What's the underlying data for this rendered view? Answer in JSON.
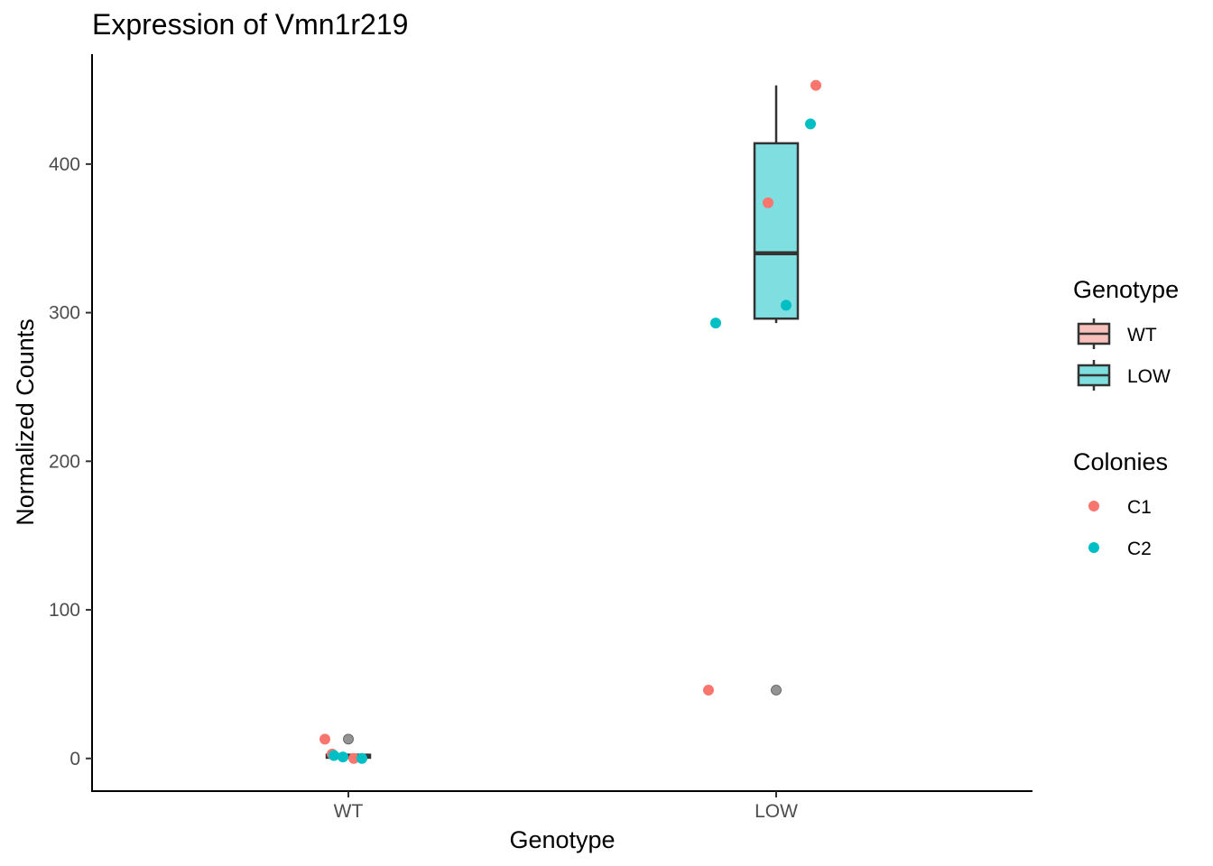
{
  "chart_data": {
    "type": "box",
    "title": "Expression of Vmn1r219",
    "xlabel": "Genotype",
    "ylabel": "Normalized Counts",
    "categories": [
      "WT",
      "LOW"
    ],
    "ylim": [
      -22,
      474
    ],
    "yticks": [
      0,
      100,
      200,
      300,
      400
    ],
    "grid": false,
    "boxes": [
      {
        "category": "WT",
        "fill": "#f8c0bb",
        "min": 0,
        "q1": 0.5,
        "median": 1.5,
        "q3": 2.5,
        "max": 3
      },
      {
        "category": "LOW",
        "fill": "#7fdfe0",
        "min": 293,
        "q1": 296,
        "median": 340,
        "q3": 414,
        "max": 453
      }
    ],
    "outliers": [
      {
        "category": "WT",
        "y": 13
      },
      {
        "category": "LOW",
        "y": 46
      }
    ],
    "points": [
      {
        "category": "WT",
        "colony": "C1",
        "y": 13
      },
      {
        "category": "WT",
        "colony": "C1",
        "y": 3
      },
      {
        "category": "WT",
        "colony": "C1",
        "y": 0
      },
      {
        "category": "WT",
        "colony": "C2",
        "y": 2
      },
      {
        "category": "WT",
        "colony": "C2",
        "y": 1
      },
      {
        "category": "WT",
        "colony": "C2",
        "y": 0
      },
      {
        "category": "LOW",
        "colony": "C1",
        "y": 46
      },
      {
        "category": "LOW",
        "colony": "C1",
        "y": 374
      },
      {
        "category": "LOW",
        "colony": "C1",
        "y": 453
      },
      {
        "category": "LOW",
        "colony": "C2",
        "y": 293
      },
      {
        "category": "LOW",
        "colony": "C2",
        "y": 305
      },
      {
        "category": "LOW",
        "colony": "C2",
        "y": 427
      }
    ],
    "legends": [
      {
        "title": "Genotype",
        "kind": "box",
        "entries": [
          {
            "label": "WT",
            "color": "#f8c0bb"
          },
          {
            "label": "LOW",
            "color": "#7fdfe0"
          }
        ]
      },
      {
        "title": "Colonies",
        "kind": "point",
        "entries": [
          {
            "label": "C1",
            "color": "#f8766d"
          },
          {
            "label": "C2",
            "color": "#00bfc4"
          }
        ]
      }
    ],
    "legend_position": "right",
    "outlier_color": "#808080"
  }
}
